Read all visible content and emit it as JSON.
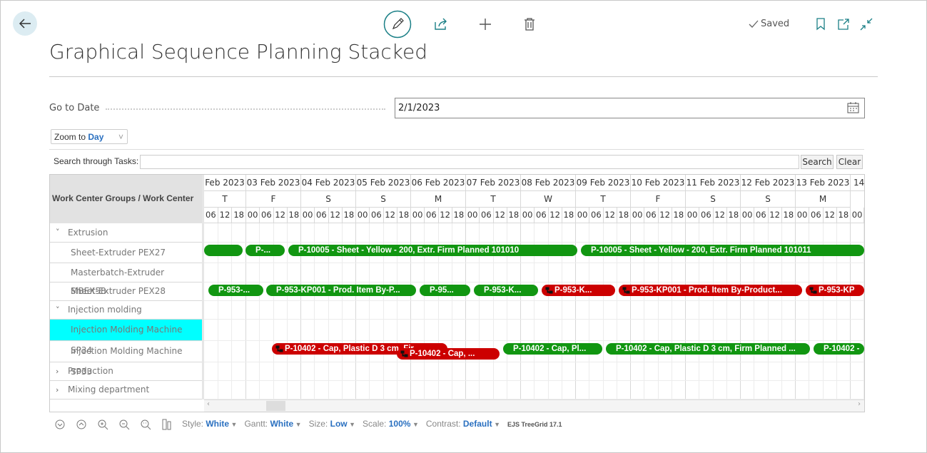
{
  "header": {
    "title": "Graphical Sequence Planning Stacked",
    "status": "Saved"
  },
  "filters": {
    "go_to_date_label": "Go to Date",
    "go_to_date_value": "2/1/2023",
    "zoom_label": "Zoom to",
    "zoom_value": "Day"
  },
  "search": {
    "label": "Search through Tasks:",
    "search_button": "Search",
    "clear_button": "Clear"
  },
  "gantt": {
    "row_header": "Work Center Groups / Work Center",
    "dates": [
      "Feb 2023",
      "03 Feb 2023",
      "04 Feb 2023",
      "05 Feb 2023",
      "06 Feb 2023",
      "07 Feb 2023",
      "08 Feb 2023",
      "09 Feb 2023",
      "10 Feb 2023",
      "11 Feb 2023",
      "12 Feb 2023",
      "13 Feb 2023",
      "14"
    ],
    "weekdays": [
      "T",
      "F",
      "S",
      "S",
      "M",
      "T",
      "W",
      "T",
      "F",
      "S",
      "S",
      "M"
    ],
    "hours": [
      "00",
      "06",
      "12",
      "18"
    ],
    "rows": [
      {
        "label": "Extrusion",
        "group": true,
        "expanded": true,
        "tasks": []
      },
      {
        "label": "Sheet-Extruder PEX27",
        "tasks": [
          {
            "label": "",
            "color": "#119611"
          },
          {
            "label": "P-...",
            "color": "#119611"
          },
          {
            "label": "P-10005 - Sheet - Yellow - 200, Extr. Firm Planned 101010",
            "color": "#119611"
          },
          {
            "label": "P-10005 - Sheet - Yellow - 200, Extr. Firm Planned 101011",
            "color": "#119611"
          }
        ]
      },
      {
        "label": "Masterbatch-Extruder MBEX58",
        "tasks": []
      },
      {
        "label": "Sheet-Extruder PEX28",
        "tasks": [
          {
            "label": "P-953-...",
            "color": "#119611"
          },
          {
            "label": "P-953-KP001 - Prod. Item By-P...",
            "color": "#119611"
          },
          {
            "label": "P-95...",
            "color": "#119611"
          },
          {
            "label": "P-953-K...",
            "color": "#119611"
          },
          {
            "label": "P-953-K...",
            "color": "#cc0000"
          },
          {
            "label": "P-953-KP001 - Prod. Item By-Product...",
            "color": "#cc0000"
          },
          {
            "label": "P-953-KP",
            "color": "#cc0000"
          }
        ]
      },
      {
        "label": "Injection molding",
        "group": true,
        "expanded": true,
        "tasks": []
      },
      {
        "label": "Injection Molding Machine SP34",
        "selected": true,
        "tasks": []
      },
      {
        "label": "Injection Molding Machine SP33",
        "tasks": [
          {
            "label": "P-10402 - Cap, Plastic D 3 cm, Fir...",
            "color": "#cc0000"
          },
          {
            "label": "P-10402 - Cap, ...",
            "color": "#cc0000"
          },
          {
            "label": "P-10402 - Cap, Pl...",
            "color": "#119611"
          },
          {
            "label": "P-10402 - Cap, Plastic D 3 cm, Firm Planned ...",
            "color": "#119611"
          },
          {
            "label": "P-10402 - ",
            "color": "#119611"
          }
        ]
      },
      {
        "label": "Production",
        "group": true,
        "expanded": false,
        "tasks": []
      },
      {
        "label": "Mixing department",
        "group": true,
        "expanded": false,
        "tasks": []
      }
    ]
  },
  "footer": {
    "settings": [
      {
        "label": "Style:",
        "value": "White"
      },
      {
        "label": "Gantt:",
        "value": "White"
      },
      {
        "label": "Size:",
        "value": "Low"
      },
      {
        "label": "Scale:",
        "value": "100%"
      },
      {
        "label": "Contrast:",
        "value": "Default"
      }
    ],
    "version": "EJS TreeGrid 17.1"
  }
}
